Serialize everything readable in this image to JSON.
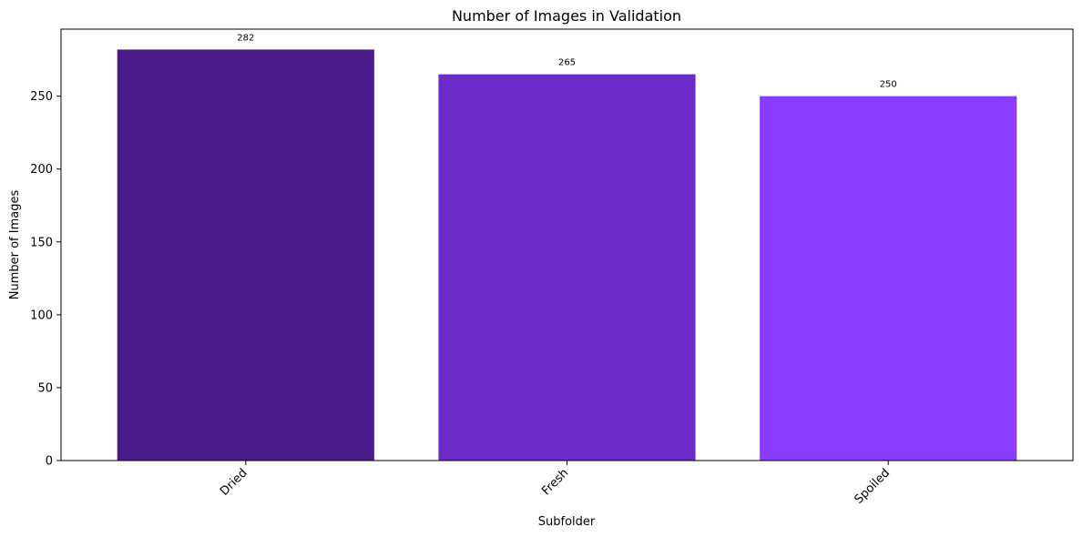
{
  "chart_data": {
    "type": "bar",
    "title": "Number of Images in Validation",
    "xlabel": "Subfolder",
    "ylabel": "Number of Images",
    "categories": [
      "Dried",
      "Fresh",
      "Spoiled"
    ],
    "values": [
      282,
      265,
      250
    ],
    "data_labels": [
      "282",
      "265",
      "250"
    ],
    "colors": [
      "#4a1c8a",
      "#6a2bc8",
      "#8b3dff"
    ],
    "ylim": [
      0,
      296
    ],
    "yticks": [
      0,
      50,
      100,
      150,
      200,
      250
    ],
    "ytick_labels": [
      "0",
      "50",
      "100",
      "150",
      "200",
      "250"
    ],
    "grid": false,
    "legend": "none",
    "xtick_rotation": 45
  }
}
